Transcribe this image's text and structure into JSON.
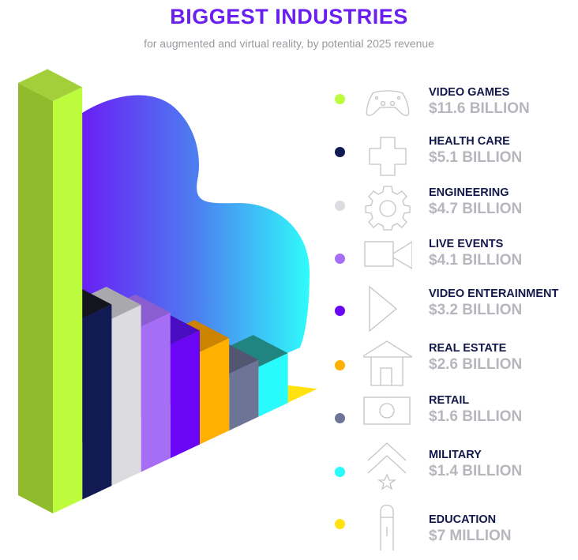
{
  "title": "BIGGEST INDUSTRIES",
  "subtitle": "for augmented and virtual reality, by potential 2025 revenue",
  "chart_data": {
    "type": "bar",
    "style": "isometric-3d",
    "title": "BIGGEST INDUSTRIES",
    "subtitle": "for augmented and virtual reality, by potential 2025 revenue",
    "unit": "billion USD",
    "categories": [
      "VIDEO GAMES",
      "HEALTH CARE",
      "ENGINEERING",
      "LIVE EVENTS",
      "VIDEO ENTERAINMENT",
      "REAL ESTATE",
      "RETAIL",
      "MILITARY",
      "EDUCATION"
    ],
    "values": [
      11.6,
      5.1,
      4.7,
      4.1,
      3.2,
      2.6,
      1.6,
      1.4,
      0.007
    ],
    "value_labels": [
      "$11.6 BILLION",
      "$5.1 BILLION",
      "$4.7 BILLION",
      "$4.1 BILLION",
      "$3.2 BILLION",
      "$2.6 BILLION",
      "$1.6 BILLION",
      "$1.4 BILLION",
      "$7 MILLION"
    ],
    "colors": [
      "#bdfc3c",
      "#111a52",
      "#dcdce0",
      "#a66df5",
      "#6a06f5",
      "#ffb000",
      "#6e7496",
      "#29fafb",
      "#ffe20f"
    ],
    "top_colors": [
      "#a3d03a",
      "#14141f",
      "#a9a9ad",
      "#8a5ed0",
      "#4a0cc0",
      "#cc8400",
      "#525670",
      "#208480",
      "#ffe20f"
    ],
    "icons": [
      "gamepad-icon",
      "medical-cross-icon",
      "gear-icon",
      "video-camera-icon",
      "play-icon",
      "house-icon",
      "banknote-icon",
      "military-rank-icon",
      "pencil-icon"
    ],
    "legend": "right",
    "grid": false
  }
}
